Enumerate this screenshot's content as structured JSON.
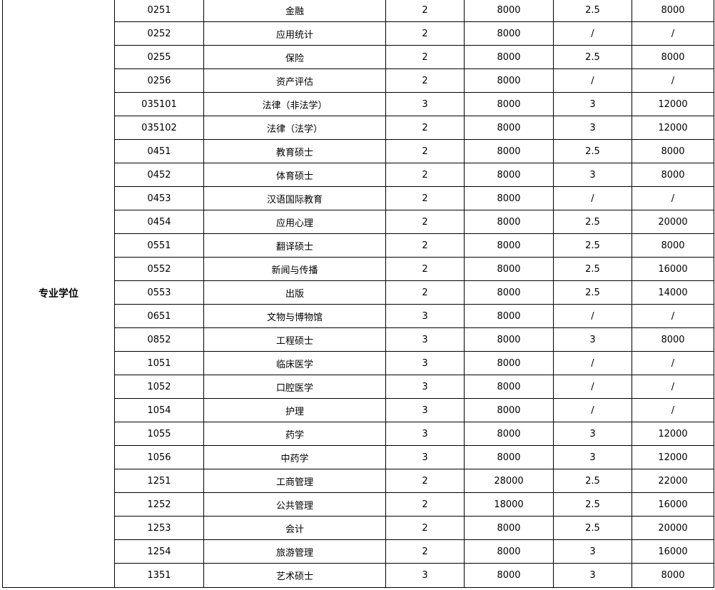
{
  "category": "专业学位",
  "rows": [
    [
      "0251",
      "金融",
      "2",
      "8000",
      "2.5",
      "8000"
    ],
    [
      "0252",
      "应用统计",
      "2",
      "8000",
      "/",
      "/"
    ],
    [
      "0255",
      "保险",
      "2",
      "8000",
      "2.5",
      "8000"
    ],
    [
      "0256",
      "资产评估",
      "2",
      "8000",
      "/",
      "/"
    ],
    [
      "035101",
      "法律（非法学）",
      "3",
      "8000",
      "3",
      "12000"
    ],
    [
      "035102",
      "法律（法学）",
      "2",
      "8000",
      "3",
      "12000"
    ],
    [
      "0451",
      "教育硕士",
      "2",
      "8000",
      "2.5",
      "8000"
    ],
    [
      "0452",
      "体育硕士",
      "2",
      "8000",
      "3",
      "8000"
    ],
    [
      "0453",
      "汉语国际教育",
      "2",
      "8000",
      "/",
      "/"
    ],
    [
      "0454",
      "应用心理",
      "2",
      "8000",
      "2.5",
      "20000"
    ],
    [
      "0551",
      "翻译硕士",
      "2",
      "8000",
      "2.5",
      "8000"
    ],
    [
      "0552",
      "新闻与传播",
      "2",
      "8000",
      "2.5",
      "16000"
    ],
    [
      "0553",
      "出版",
      "2",
      "8000",
      "2.5",
      "14000"
    ],
    [
      "0651",
      "文物与博物馆",
      "3",
      "8000",
      "/",
      "/"
    ],
    [
      "0852",
      "工程硕士",
      "3",
      "8000",
      "3",
      "8000"
    ],
    [
      "1051",
      "临床医学",
      "3",
      "8000",
      "/",
      "/"
    ],
    [
      "1052",
      "口腔医学",
      "3",
      "8000",
      "/",
      "/"
    ],
    [
      "1054",
      "护理",
      "3",
      "8000",
      "/",
      "/"
    ],
    [
      "1055",
      "药学",
      "3",
      "8000",
      "3",
      "12000"
    ],
    [
      "1056",
      "中药学",
      "3",
      "8000",
      "3",
      "12000"
    ],
    [
      "1251",
      "工商管理",
      "2",
      "28000",
      "2.5",
      "22000"
    ],
    [
      "1252",
      "公共管理",
      "2",
      "18000",
      "2.5",
      "16000"
    ],
    [
      "1253",
      "会计",
      "2",
      "8000",
      "2.5",
      "20000"
    ],
    [
      "1254",
      "旅游管理",
      "2",
      "8000",
      "3",
      "16000"
    ],
    [
      "1351",
      "艺术硕士",
      "3",
      "8000",
      "3",
      "8000"
    ]
  ]
}
